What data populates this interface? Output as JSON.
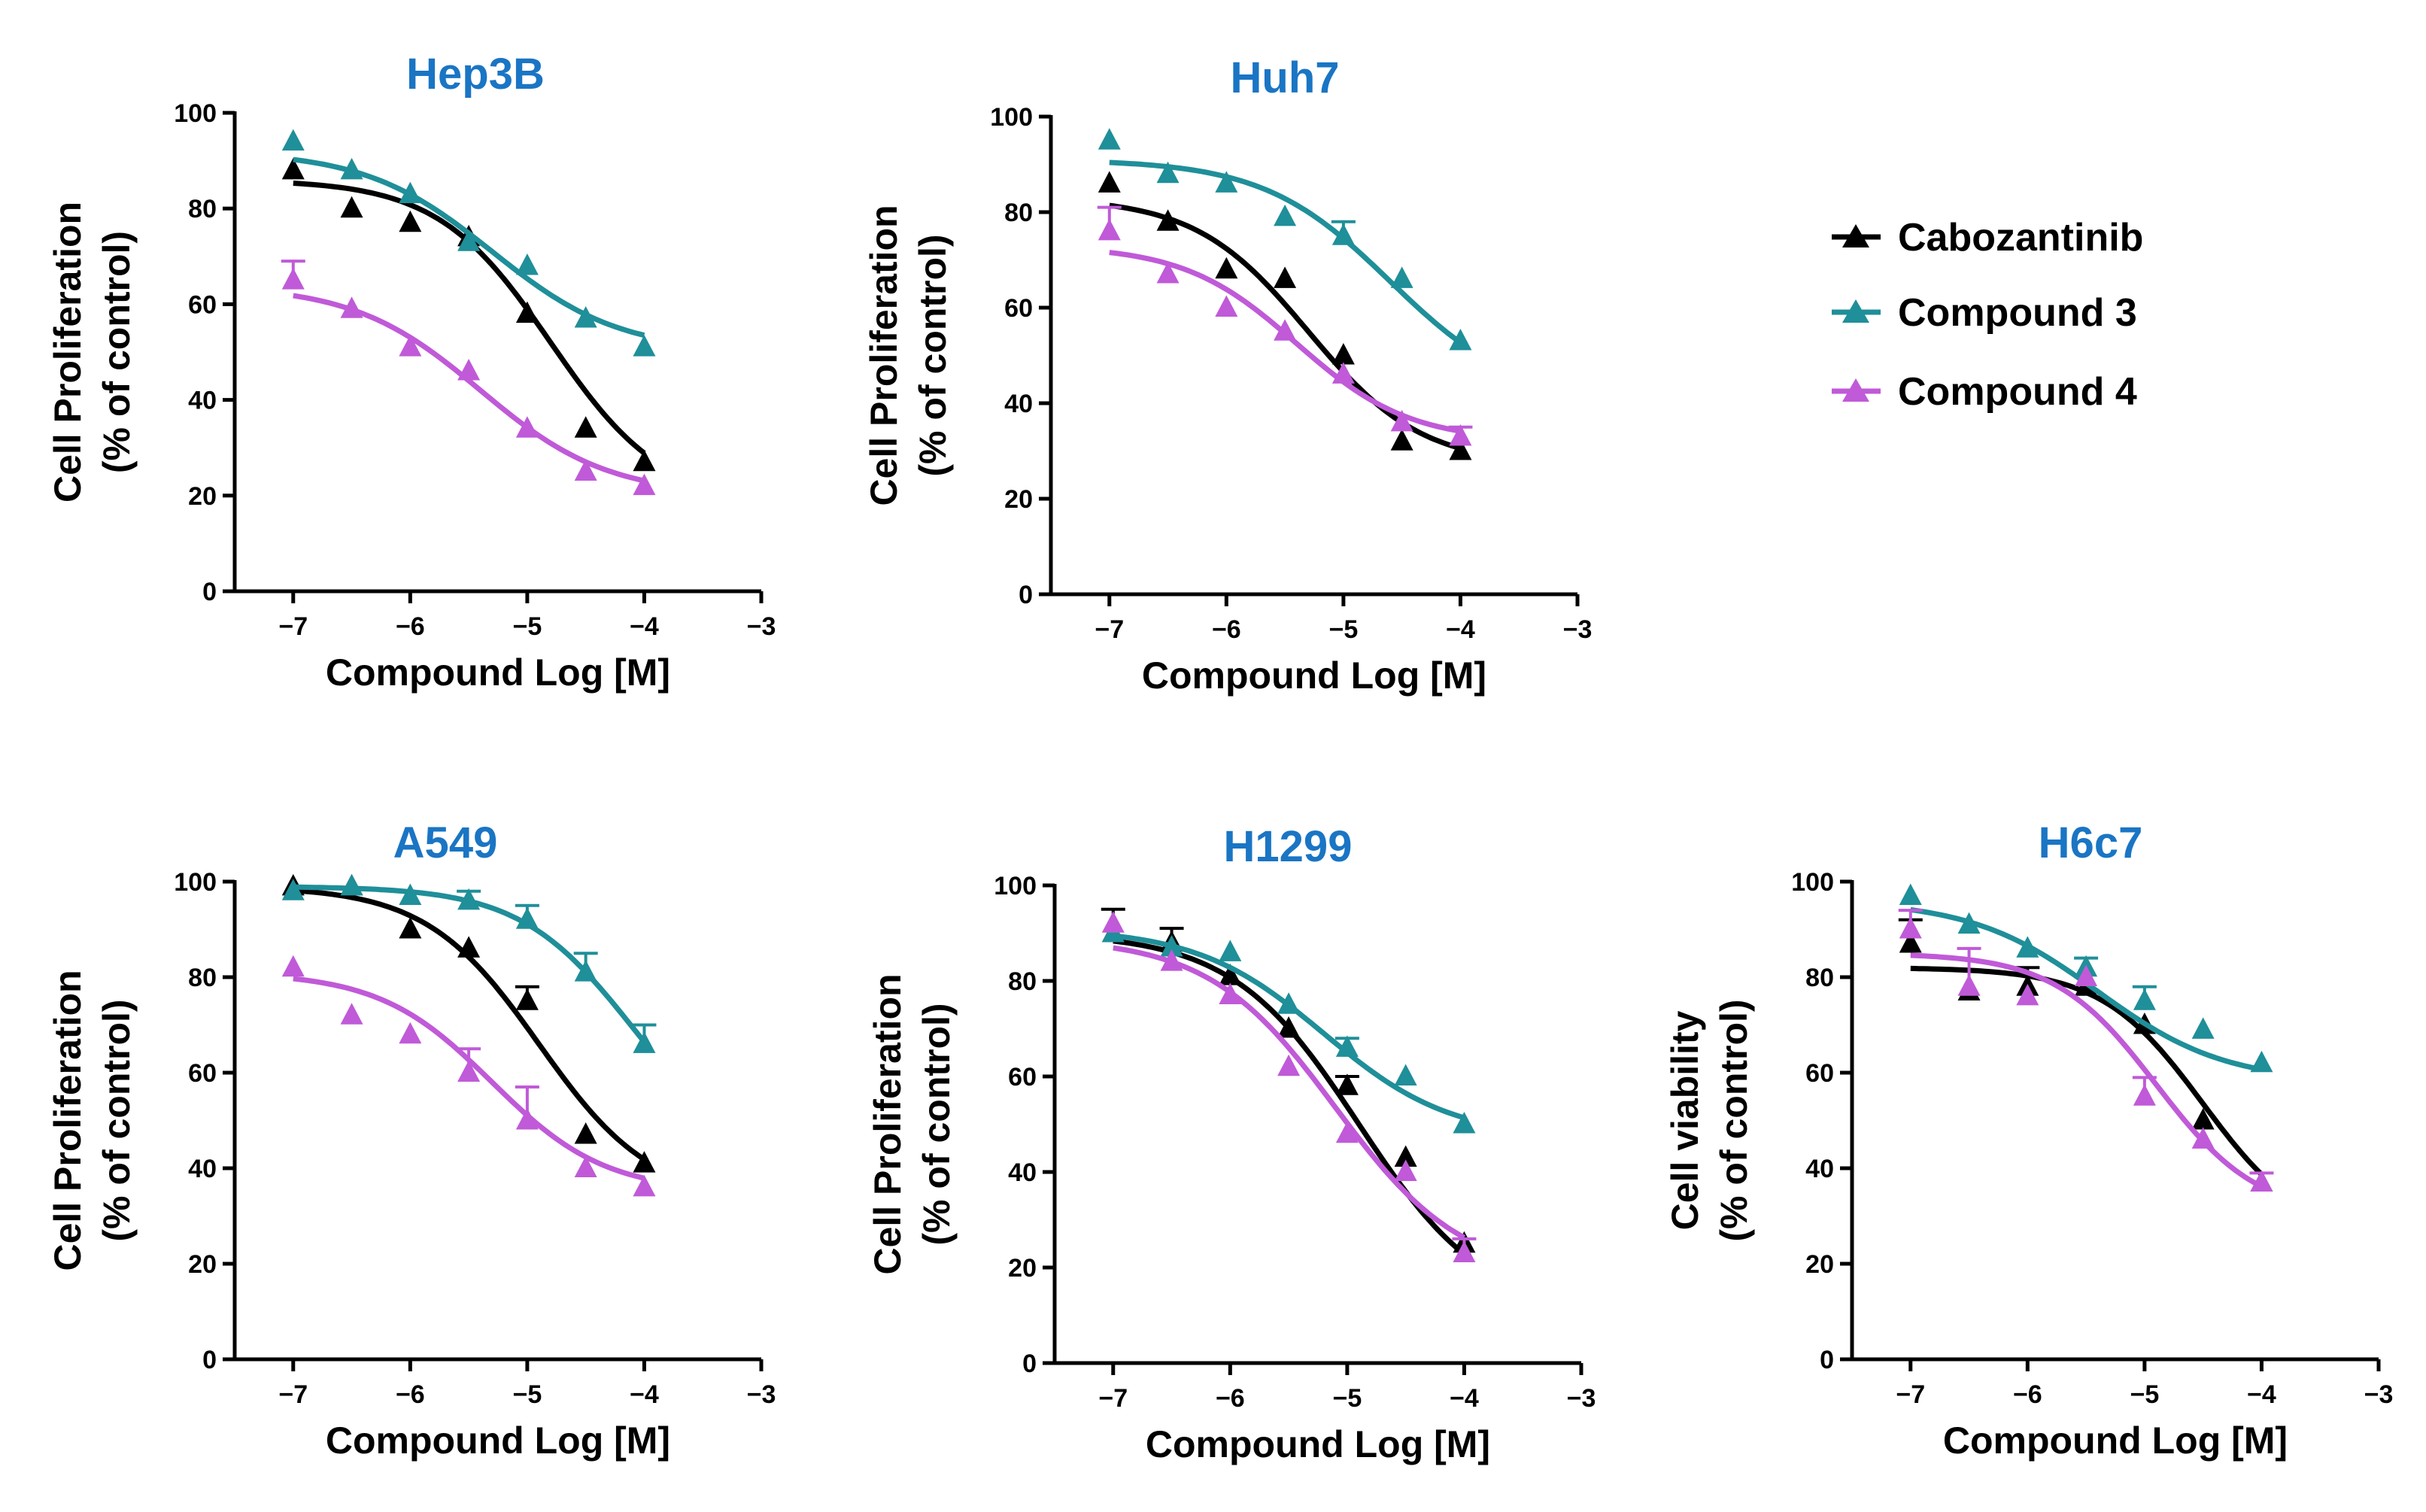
{
  "figure": {
    "background": "#ffffff",
    "title_color": "#1a75c4"
  },
  "legend": {
    "items": [
      {
        "key": "cabo",
        "label": "Cabozantinib",
        "color": "#000000"
      },
      {
        "key": "c3",
        "label": "Compound 3",
        "color": "#1f8f99"
      },
      {
        "key": "c4",
        "label": "Compound 4",
        "color": "#c05ad8"
      }
    ]
  },
  "chart_data": [
    {
      "id": "hep3b",
      "type": "line",
      "title": "Hep3B",
      "xlabel": "Compound Log [M]",
      "ylabel": [
        "Cell Proliferation",
        "(% of control)"
      ],
      "xlim": [
        -7.5,
        -3
      ],
      "ylim": [
        0,
        100
      ],
      "xticks": [
        -7,
        -6,
        -5,
        -4,
        -3
      ],
      "yticks": [
        0,
        20,
        40,
        60,
        80,
        100
      ],
      "series": [
        {
          "name": "Cabozantinib",
          "color": "#000000",
          "x": [
            -7,
            -6.5,
            -6,
            -5.5,
            -5,
            -4.5,
            -4
          ],
          "y": [
            88,
            80,
            77,
            74,
            58,
            34,
            27
          ],
          "err": [
            0,
            0,
            0,
            0,
            0,
            0,
            0
          ],
          "fit": {
            "top": 86,
            "bottom": 18,
            "logec50": -4.8,
            "hill": 0.9
          }
        },
        {
          "name": "Compound 3",
          "color": "#1f8f99",
          "x": [
            -7,
            -6.5,
            -6,
            -5.5,
            -5,
            -4.5,
            -4
          ],
          "y": [
            94,
            88,
            83,
            73,
            68,
            57,
            51
          ],
          "err": [
            0,
            0,
            0,
            0,
            0,
            0,
            0
          ],
          "fit": {
            "top": 92,
            "bottom": 50,
            "logec50": -5.3,
            "hill": 0.8
          }
        },
        {
          "name": "Compound 4",
          "color": "#c05ad8",
          "x": [
            -7,
            -6.5,
            -6,
            -5.5,
            -5,
            -4.5,
            -4
          ],
          "y": [
            65,
            59,
            51,
            46,
            34,
            25,
            22
          ],
          "err": [
            4,
            0,
            0,
            0,
            0,
            0,
            0
          ],
          "fit": {
            "top": 64,
            "bottom": 20,
            "logec50": -5.4,
            "hill": 0.8
          }
        }
      ]
    },
    {
      "id": "huh7",
      "type": "line",
      "title": "Huh7",
      "xlabel": "Compound Log [M]",
      "ylabel": [
        "Cell Proliferation",
        "(% of control)"
      ],
      "xlim": [
        -7.5,
        -3
      ],
      "ylim": [
        0,
        100
      ],
      "xticks": [
        -7,
        -6,
        -5,
        -4,
        -3
      ],
      "yticks": [
        0,
        20,
        40,
        60,
        80,
        100
      ],
      "series": [
        {
          "name": "Cabozantinib",
          "color": "#000000",
          "x": [
            -7,
            -6.5,
            -6,
            -5.5,
            -5,
            -4.5,
            -4
          ],
          "y": [
            86,
            78,
            68,
            66,
            50,
            32,
            30
          ],
          "err": [
            0,
            0,
            0,
            0,
            0,
            0,
            0
          ],
          "fit": {
            "top": 83,
            "bottom": 27,
            "logec50": -5.3,
            "hill": 0.9
          }
        },
        {
          "name": "Compound 3",
          "color": "#1f8f99",
          "x": [
            -7,
            -6.5,
            -6,
            -5.5,
            -5,
            -4.5,
            -4
          ],
          "y": [
            95,
            88,
            86,
            79,
            75,
            66,
            53
          ],
          "err": [
            0,
            0,
            0,
            0,
            3,
            0,
            0
          ],
          "fit": {
            "top": 91,
            "bottom": 40,
            "logec50": -4.6,
            "hill": 0.8
          }
        },
        {
          "name": "Compound 4",
          "color": "#c05ad8",
          "x": [
            -7,
            -6.5,
            -6,
            -5.5,
            -5,
            -4.5,
            -4
          ],
          "y": [
            76,
            67,
            60,
            55,
            46,
            36,
            33
          ],
          "err": [
            5,
            0,
            0,
            0,
            0,
            0,
            2
          ],
          "fit": {
            "top": 73,
            "bottom": 32,
            "logec50": -5.4,
            "hill": 0.9
          }
        }
      ]
    },
    {
      "id": "a549",
      "type": "line",
      "title": "A549",
      "xlabel": "Compound Log [M]",
      "ylabel": [
        "Cell Proliferation",
        "(% of control)"
      ],
      "xlim": [
        -7.5,
        -3
      ],
      "ylim": [
        0,
        100
      ],
      "xticks": [
        -7,
        -6,
        -5,
        -4,
        -3
      ],
      "yticks": [
        0,
        20,
        40,
        60,
        80,
        100
      ],
      "series": [
        {
          "name": "Cabozantinib",
          "color": "#000000",
          "x": [
            -7,
            -6.5,
            -6,
            -5.5,
            -5,
            -4.5,
            -4
          ],
          "y": [
            99,
            99,
            90,
            86,
            75,
            47,
            41
          ],
          "err": [
            0,
            0,
            0,
            0,
            3,
            0,
            0
          ],
          "fit": {
            "top": 99,
            "bottom": 33,
            "logec50": -4.9,
            "hill": 0.9
          }
        },
        {
          "name": "Compound 3",
          "color": "#1f8f99",
          "x": [
            -7,
            -6.5,
            -6,
            -5.5,
            -5,
            -4.5,
            -4
          ],
          "y": [
            98,
            99,
            97,
            96,
            92,
            81,
            66
          ],
          "err": [
            0,
            0,
            0,
            2,
            3,
            4,
            4
          ],
          "fit": {
            "top": 99,
            "bottom": 40,
            "logec50": -4.1,
            "hill": 0.9
          }
        },
        {
          "name": "Compound 4",
          "color": "#c05ad8",
          "x": [
            -7,
            -6.5,
            -6,
            -5.5,
            -5,
            -4.5,
            -4
          ],
          "y": [
            82,
            72,
            68,
            60,
            50,
            40,
            36
          ],
          "err": [
            0,
            0,
            0,
            5,
            7,
            0,
            0
          ],
          "fit": {
            "top": 81,
            "bottom": 35,
            "logec50": -5.3,
            "hill": 0.9
          }
        }
      ]
    },
    {
      "id": "h1299",
      "type": "line",
      "title": "H1299",
      "xlabel": "Compound Log [M]",
      "ylabel": [
        "Cell Proliferation",
        "(% of control)"
      ],
      "xlim": [
        -7.5,
        -3
      ],
      "ylim": [
        0,
        100
      ],
      "xticks": [
        -7,
        -6,
        -5,
        -4,
        -3
      ],
      "yticks": [
        0,
        20,
        40,
        60,
        80,
        100
      ],
      "series": [
        {
          "name": "Cabozantinib",
          "color": "#000000",
          "x": [
            -7,
            -6.5,
            -6,
            -5.5,
            -5,
            -4.5,
            -4
          ],
          "y": [
            90,
            88,
            81,
            70,
            58,
            43,
            25
          ],
          "err": [
            5,
            3,
            0,
            0,
            2,
            0,
            0
          ],
          "fit": {
            "top": 90,
            "bottom": 10,
            "logec50": -4.9,
            "hill": 0.8
          }
        },
        {
          "name": "Compound 3",
          "color": "#1f8f99",
          "x": [
            -7,
            -6.5,
            -6,
            -5.5,
            -5,
            -4.5,
            -4
          ],
          "y": [
            90,
            87,
            86,
            75,
            66,
            60,
            50
          ],
          "err": [
            0,
            0,
            0,
            0,
            2,
            0,
            0
          ],
          "fit": {
            "top": 91,
            "bottom": 47,
            "logec50": -5.2,
            "hill": 0.8
          }
        },
        {
          "name": "Compound 4",
          "color": "#c05ad8",
          "x": [
            -7,
            -6.5,
            -6,
            -5.5,
            -5,
            -4.5,
            -4
          ],
          "y": [
            92,
            84,
            77,
            62,
            48,
            40,
            23
          ],
          "err": [
            0,
            0,
            0,
            0,
            0,
            0,
            3
          ],
          "fit": {
            "top": 89,
            "bottom": 18,
            "logec50": -5.1,
            "hill": 0.8
          }
        }
      ]
    },
    {
      "id": "h6c7",
      "type": "line",
      "title": "H6c7",
      "xlabel": "Compound Log [M]",
      "ylabel": [
        "Cell viability",
        "(% of control)"
      ],
      "xlim": [
        -7.5,
        -3
      ],
      "ylim": [
        0,
        100
      ],
      "xticks": [
        -7,
        -6,
        -5,
        -4,
        -3
      ],
      "yticks": [
        0,
        20,
        40,
        60,
        80,
        100
      ],
      "series": [
        {
          "name": "Cabozantinib",
          "color": "#000000",
          "x": [
            -7,
            -6.5,
            -6,
            -5.5,
            -5,
            -4.5,
            -4
          ],
          "y": [
            87,
            77,
            78,
            78,
            70,
            50,
            37
          ],
          "err": [
            5,
            0,
            4,
            0,
            0,
            0,
            0
          ],
          "fit": {
            "top": 82,
            "bottom": 25,
            "logec50": -4.5,
            "hill": 1.0
          }
        },
        {
          "name": "Compound 3",
          "color": "#1f8f99",
          "x": [
            -7,
            -6.5,
            -6,
            -5.5,
            -5,
            -4.5,
            -4
          ],
          "y": [
            97,
            91,
            86,
            82,
            75,
            69,
            62
          ],
          "err": [
            0,
            0,
            0,
            2,
            3,
            0,
            0
          ],
          "fit": {
            "top": 96,
            "bottom": 58,
            "logec50": -5.4,
            "hill": 0.8
          }
        },
        {
          "name": "Compound 4",
          "color": "#c05ad8",
          "x": [
            -7,
            -6.5,
            -6,
            -5.5,
            -5,
            -4.5,
            -4
          ],
          "y": [
            90,
            78,
            76,
            80,
            55,
            46,
            37
          ],
          "err": [
            4,
            8,
            0,
            0,
            4,
            0,
            2
          ],
          "fit": {
            "top": 85,
            "bottom": 30,
            "logec50": -4.9,
            "hill": 1.0
          }
        }
      ]
    }
  ]
}
